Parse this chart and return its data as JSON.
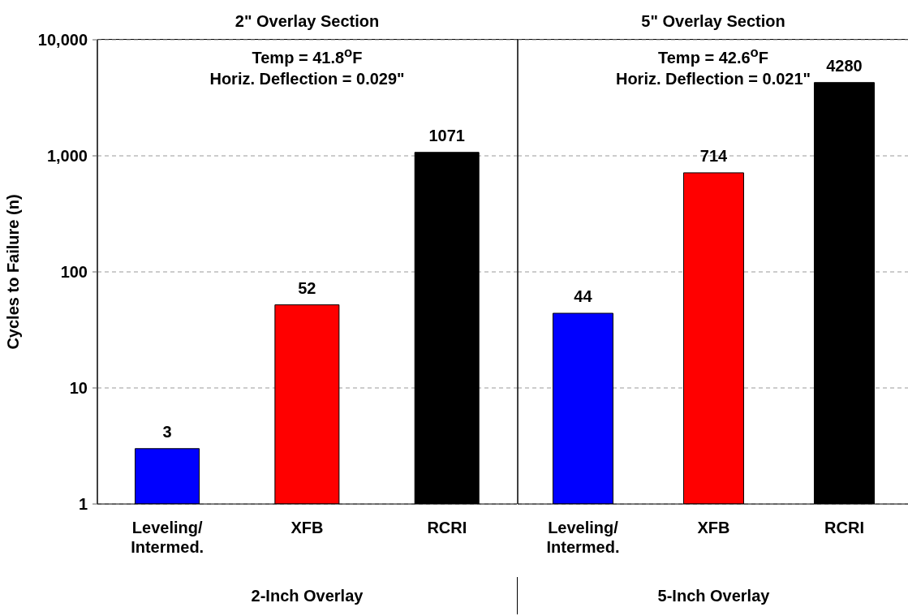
{
  "chart_data": [
    {
      "type": "bar",
      "title": "2\" Overlay Section",
      "xlabel": "2-Inch Overlay",
      "ylabel": "Cycles to Failure (n)",
      "categories": [
        "Leveling/\nIntermed.",
        "XFB",
        "RCRI"
      ],
      "values": [
        3,
        52,
        1071
      ],
      "colors": [
        "#0000ff",
        "#ff0000",
        "#000000"
      ],
      "data_labels": true,
      "log": "y",
      "ylim": [
        1,
        10000
      ],
      "yticks": [
        1,
        10,
        100,
        {
          "value": 1000,
          "label": "1,000"
        },
        {
          "value": 10000,
          "label": "10,000"
        }
      ],
      "grid": "y",
      "annotations": [
        "Temp = 41.8$^{o}$F",
        "Horiz. Deflection = 0.029\""
      ]
    },
    {
      "type": "bar",
      "title": "5\" Overlay Section",
      "xlabel": "5-Inch Overlay",
      "categories": [
        "Leveling/\nIntermed.",
        "XFB",
        "RCRI"
      ],
      "values": [
        44,
        714,
        4280
      ],
      "colors": [
        "#0000ff",
        "#ff0000",
        "#000000"
      ],
      "data_labels": true,
      "log": "y",
      "ylim": [
        1,
        10000
      ],
      "yticks": [
        {
          "value": 1,
          "label": null
        },
        {
          "value": 10,
          "label": null
        },
        {
          "value": 100,
          "label": null
        },
        {
          "value": 1000,
          "label": null
        },
        {
          "value": 10000,
          "label": null
        }
      ],
      "grid": "y",
      "tick_labels": "x",
      "annotations": [
        "Temp = 42.6$^{o}$F",
        "Horiz. Deflection = 0.021\""
      ]
    }
  ]
}
